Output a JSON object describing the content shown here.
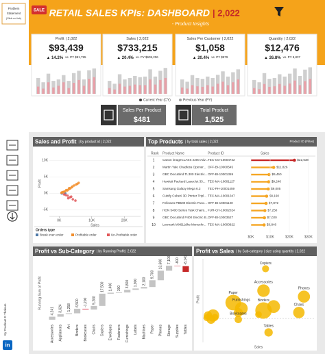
{
  "header": {
    "badge": "SALE",
    "title": "RETAIL SALES KPIs: DASHBOARD",
    "year": "| 2,022",
    "subtitle": "- Product Insights"
  },
  "sidebar": {
    "problem": [
      "Problem",
      "Statement",
      "(Click on Link)"
    ],
    "author": "By Prashant R Thakare",
    "linkedin": "in"
  },
  "kpis": [
    {
      "label": "Profit",
      "year": "| 2,022",
      "value": "$93,439",
      "change": "▲ 14.2%",
      "vs": "vs. PY $81,795",
      "ylim": [
        0,
        100
      ],
      "py": [
        55,
        40,
        70,
        45,
        50,
        65,
        45,
        72,
        80,
        50,
        82,
        88
      ],
      "cy": [
        25,
        18,
        40,
        22,
        28,
        40,
        20,
        38,
        48,
        28,
        52,
        58
      ]
    },
    {
      "label": "Sales",
      "year": "| 2,022",
      "value": "$733,215",
      "change": "▲ 20.4%",
      "vs": "vs. PY $609,206",
      "ylim": [
        0,
        100
      ],
      "py": [
        45,
        35,
        68,
        50,
        55,
        62,
        58,
        60,
        85,
        60,
        80,
        90
      ],
      "cy": [
        20,
        15,
        35,
        25,
        28,
        32,
        30,
        30,
        50,
        32,
        48,
        55
      ]
    },
    {
      "label": "Sales Per Customer",
      "year": "| 2,022",
      "value": "$1,058",
      "change": "▲ 20.4%",
      "vs": "vs. PY $879",
      "ylim": [
        0,
        100
      ],
      "py": [
        50,
        42,
        65,
        55,
        52,
        60,
        55,
        66,
        78,
        60,
        75,
        85
      ],
      "cy": [
        22,
        18,
        30,
        26,
        24,
        30,
        25,
        35,
        42,
        30,
        40,
        50
      ]
    },
    {
      "label": "Quantity",
      "year": "| 2,022",
      "value": "$12,476",
      "change": "▲ 26.8%",
      "vs": "vs. PY 9,837",
      "ylim": [
        0,
        100
      ],
      "py": [
        48,
        40,
        72,
        52,
        55,
        68,
        60,
        70,
        88,
        62,
        84,
        92
      ],
      "cy": [
        20,
        16,
        34,
        24,
        26,
        34,
        28,
        36,
        46,
        30,
        44,
        52
      ]
    }
  ],
  "kpi_legend": [
    {
      "name": "Current Year (CY)",
      "color": "#3a3a3a"
    },
    {
      "name": "Previous Year (PY)",
      "color": "#9e9e9e"
    }
  ],
  "kpi_colors": {
    "py": "#cfcfcf",
    "cy": "#e8a0a8"
  },
  "mini_cards": [
    {
      "label": "Sales Per Product",
      "value": "$481"
    },
    {
      "label": "Total Product",
      "value": "1,525"
    }
  ],
  "chart_data": [
    {
      "type": "scatter",
      "title": "Sales and Profit",
      "subtitle": "| by product id | 2,022",
      "x_label": "Sales",
      "y_label": "Profit",
      "legend_title": "Orders type",
      "xlim": [
        -3000,
        25000
      ],
      "ylim": [
        -7000,
        13000
      ],
      "xticks": [
        {
          "value": 0,
          "label": "0K"
        },
        {
          "value": 10000,
          "label": "10K"
        },
        {
          "value": 20000,
          "label": "20K"
        }
      ],
      "yticks": [
        {
          "value": 10000,
          "label": "10K"
        },
        {
          "value": 5000,
          "label": "5K"
        },
        {
          "value": 0,
          "label": "0K"
        },
        {
          "value": -5000,
          "label": "-5K"
        }
      ],
      "series": [
        {
          "name": "Break even order",
          "color": "#4e79a7",
          "x": [
            800,
            1900
          ],
          "values": [
            0,
            0
          ]
        },
        {
          "name": "Profitable order",
          "color": "#f28e2b",
          "x": [
            1200,
            2500,
            3400,
            4100,
            5200,
            1800,
            2900,
            3800,
            6000,
            700,
            1500,
            4600,
            2200,
            3100,
            5600,
            900
          ],
          "values": [
            400,
            900,
            1500,
            2100,
            2700,
            600,
            1200,
            1800,
            3200,
            200,
            500,
            2400,
            1000,
            1600,
            2900,
            300
          ]
        },
        {
          "name": "Un-Profitable order",
          "color": "#e15759",
          "x": [
            1500,
            2600,
            3300,
            4200,
            2000,
            3700,
            5000,
            2800
          ],
          "values": [
            -300,
            -700,
            -1200,
            -1800,
            -500,
            -1000,
            -2200,
            -1500
          ]
        }
      ]
    },
    {
      "type": "table_bar",
      "title": "Top Products",
      "subtitle": "| by total sales | 2,022",
      "filter": "Product ID (Filter)",
      "columns": [
        "Rank",
        "Product Name",
        "Product ID",
        "Sales"
      ],
      "ranks": [
        1,
        2,
        3,
        4,
        5,
        6,
        7,
        8,
        9,
        10
      ],
      "categories": [
        "Canon imageCLASS 2200 Adv...",
        "Martin Yale Chadless Opener...",
        "GBC DocuBind TL300 Electric...",
        "Hewlett Packard LaserJet 33...",
        "Samsung Galaxy Mega 6.3",
        "Cubify CubeX 3D Printer Tripl...",
        "Fellowes PB500 Electric Punc...",
        "HON 5400 Series Task Chairs...",
        "GBC DocuBind P400 Electric B...",
        "Lexmark MX611dhe Monochr..."
      ],
      "ids": [
        "TEC-CO-10004722",
        "OFF-BI-10000545",
        "OFF-BI-10001359",
        "TEC-MA-10001127",
        "TEC-PH-10001459",
        "TEC-MA-10001047",
        "OFF-BI-10001120",
        "FUR-CH-10002024",
        "OFF-BI-10003527",
        "TEC-MA-10000822"
      ],
      "values": [
        22638,
        11826,
        9450,
        9240,
        9005,
        8160,
        7872,
        7250,
        7020,
        6840
      ],
      "value_labels": [
        "$22,638",
        "$11,826",
        "$9,450",
        "$9,240",
        "$9,005",
        "$8,160",
        "$7,872",
        "$7,250",
        "$7,020",
        "$6,840"
      ],
      "colors": [
        "#c62828",
        "#f5a623"
      ],
      "xlim": [
        0,
        30000
      ],
      "xticks": [
        {
          "value": 0,
          "label": "$0K"
        },
        {
          "value": 10000,
          "label": "$10K"
        },
        {
          "value": 20000,
          "label": "$20K"
        },
        {
          "value": 30000,
          "label": "$30K"
        }
      ]
    },
    {
      "type": "waterfall",
      "title": "Profit vs Sub-Category",
      "subtitle": "| by Running Profit | 2,022",
      "y_label": "Running Sum of Profit",
      "ylim": [
        -5000,
        82000
      ],
      "categories": [
        "Accessories",
        "Appliances",
        "Art",
        "Binders",
        "Bookcases",
        "Chairs",
        "Copiers",
        "Envelopes",
        "Fasteners",
        "Furnishings",
        "Labels",
        "Machines",
        "Paper",
        "Phones",
        "Storage",
        "Supplies",
        "Tables"
      ],
      "values": [
        4241,
        3624,
        1258,
        6500,
        -1200,
        5200,
        17500,
        1400,
        300,
        3800,
        1900,
        2100,
        9700,
        13600,
        7100,
        -600,
        -8141
      ],
      "value_labels": [
        "4,241",
        "3,624",
        "1,258",
        "6,500",
        "-1,200",
        "5,200",
        "17,500",
        "1,400",
        "300",
        "3,800",
        "1,900",
        "2,100",
        "9,700",
        "13,600",
        "7,100",
        "-600",
        "-8,141"
      ],
      "colors": {
        "positive": "#c4c4c4",
        "negative": "#e57383",
        "last": "#c62828"
      }
    },
    {
      "type": "bubble",
      "title": "Profit vs Sales",
      "subtitle": "| by Sub-category | size using quantity | 2,022",
      "x_label": "Sales",
      "y_label": "Profit",
      "xlim": [
        0,
        110000
      ],
      "ylim": [
        -12000,
        30000
      ],
      "color": "#f5b800",
      "categories": [
        "Copiers",
        "Accessories",
        "Phones",
        "Paper",
        "Furnishings",
        "Binders",
        "Chairs",
        "Bookcases",
        "Tables",
        null,
        null,
        null,
        null,
        null,
        null,
        null,
        null
      ],
      "x": [
        62000,
        60000,
        100000,
        30000,
        38000,
        60000,
        95000,
        35000,
        65000,
        70000,
        55000,
        10000,
        5000,
        8000,
        35000,
        12000,
        4000
      ],
      "values": [
        25000,
        14000,
        11000,
        8000,
        5000,
        4000,
        3000,
        -500,
        -7000,
        6000,
        2000,
        1500,
        1500,
        -500,
        3000,
        800,
        400
      ],
      "sizes": [
        900,
        2900,
        2700,
        4500,
        3000,
        5000,
        2400,
        1000,
        1300,
        3000,
        800,
        2800,
        1300,
        1400,
        1500,
        700,
        900
      ]
    }
  ]
}
